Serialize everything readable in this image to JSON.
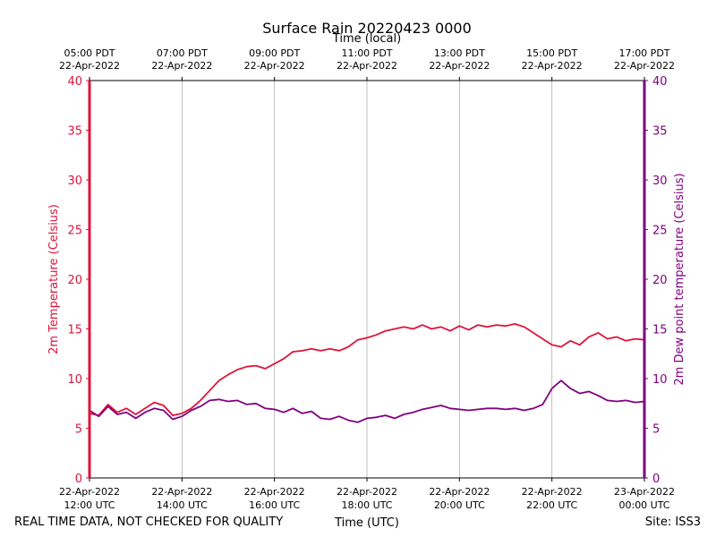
{
  "chart_data": {
    "type": "line",
    "title": "Surface Rain 20220423 0000",
    "top_axis_label": "Time (local)",
    "top_ticks": [
      {
        "line1": "05:00 PDT",
        "line2": "22-Apr-2022"
      },
      {
        "line1": "07:00 PDT",
        "line2": "22-Apr-2022"
      },
      {
        "line1": "09:00 PDT",
        "line2": "22-Apr-2022"
      },
      {
        "line1": "11:00 PDT",
        "line2": "22-Apr-2022"
      },
      {
        "line1": "13:00 PDT",
        "line2": "22-Apr-2022"
      },
      {
        "line1": "15:00 PDT",
        "line2": "22-Apr-2022"
      },
      {
        "line1": "17:00 PDT",
        "line2": "22-Apr-2022"
      }
    ],
    "bottom_ticks": [
      {
        "line1": "22-Apr-2022",
        "line2": "12:00 UTC"
      },
      {
        "line1": "22-Apr-2022",
        "line2": "14:00 UTC"
      },
      {
        "line1": "22-Apr-2022",
        "line2": "16:00 UTC"
      },
      {
        "line1": "22-Apr-2022",
        "line2": "18:00 UTC"
      },
      {
        "line1": "22-Apr-2022",
        "line2": "20:00 UTC"
      },
      {
        "line1": "22-Apr-2022",
        "line2": "22:00 UTC"
      },
      {
        "line1": "23-Apr-2022",
        "line2": "00:00 UTC"
      }
    ],
    "xlabel": "Time (UTC)",
    "xlim_hours_utc": [
      12,
      24
    ],
    "ylabel_left": "2m Temperature (Celsius)",
    "ylabel_right": "2m Dew point temperature (Celsius)",
    "ylim": [
      0,
      40
    ],
    "y_ticks": [
      0,
      5,
      10,
      15,
      20,
      25,
      30,
      35,
      40
    ],
    "grid": "vertical",
    "left_color": "#dc143c",
    "right_color": "#800080",
    "series": [
      {
        "name": "2m Temperature",
        "color": "#dc143c",
        "axis": "left",
        "x": [
          12.0,
          12.2,
          12.4,
          12.6,
          12.8,
          13.0,
          13.2,
          13.4,
          13.6,
          13.8,
          14.0,
          14.2,
          14.4,
          14.6,
          14.8,
          15.0,
          15.2,
          15.4,
          15.6,
          15.8,
          16.0,
          16.2,
          16.4,
          16.6,
          16.8,
          17.0,
          17.2,
          17.4,
          17.6,
          17.8,
          18.0,
          18.2,
          18.4,
          18.6,
          18.8,
          19.0,
          19.2,
          19.4,
          19.6,
          19.8,
          20.0,
          20.2,
          20.4,
          20.6,
          20.8,
          21.0,
          21.2,
          21.4,
          21.6,
          21.8,
          22.0,
          22.2,
          22.4,
          22.6,
          22.8,
          23.0,
          23.2,
          23.4,
          23.6,
          23.8,
          24.0
        ],
        "y": [
          6.5,
          6.3,
          7.4,
          6.6,
          7.0,
          6.4,
          7.0,
          7.6,
          7.3,
          6.3,
          6.5,
          7.0,
          7.8,
          8.8,
          9.8,
          10.4,
          10.9,
          11.2,
          11.3,
          11.0,
          11.5,
          12.0,
          12.7,
          12.8,
          13.0,
          12.8,
          13.0,
          12.8,
          13.2,
          13.9,
          14.1,
          14.4,
          14.8,
          15.0,
          15.2,
          15.0,
          15.4,
          15.0,
          15.2,
          14.8,
          15.3,
          14.9,
          15.4,
          15.2,
          15.4,
          15.3,
          15.5,
          15.2,
          14.6,
          14.0,
          13.4,
          13.2,
          13.8,
          13.4,
          14.2,
          14.6,
          14.0,
          14.2,
          13.8,
          14.0,
          13.9
        ]
      },
      {
        "name": "2m Dew point temperature",
        "color": "#800080",
        "axis": "right",
        "x": [
          12.0,
          12.2,
          12.4,
          12.6,
          12.8,
          13.0,
          13.2,
          13.4,
          13.6,
          13.8,
          14.0,
          14.2,
          14.4,
          14.6,
          14.8,
          15.0,
          15.2,
          15.4,
          15.6,
          15.8,
          16.0,
          16.2,
          16.4,
          16.6,
          16.8,
          17.0,
          17.2,
          17.4,
          17.6,
          17.8,
          18.0,
          18.2,
          18.4,
          18.6,
          18.8,
          19.0,
          19.2,
          19.4,
          19.6,
          19.8,
          20.0,
          20.2,
          20.4,
          20.6,
          20.8,
          21.0,
          21.2,
          21.4,
          21.6,
          21.8,
          22.0,
          22.2,
          22.4,
          22.6,
          22.8,
          23.0,
          23.2,
          23.4,
          23.6,
          23.8,
          24.0
        ],
        "y": [
          6.8,
          6.2,
          7.2,
          6.4,
          6.6,
          6.0,
          6.6,
          7.0,
          6.8,
          5.9,
          6.2,
          6.8,
          7.2,
          7.8,
          7.9,
          7.7,
          7.8,
          7.4,
          7.5,
          7.0,
          6.9,
          6.6,
          7.0,
          6.5,
          6.7,
          6.0,
          5.9,
          6.2,
          5.8,
          5.6,
          6.0,
          6.1,
          6.3,
          6.0,
          6.4,
          6.6,
          6.9,
          7.1,
          7.3,
          7.0,
          6.9,
          6.8,
          6.9,
          7.0,
          7.0,
          6.9,
          7.0,
          6.8,
          7.0,
          7.4,
          9.0,
          9.8,
          9.0,
          8.5,
          8.7,
          8.3,
          7.8,
          7.7,
          7.8,
          7.6,
          7.7
        ]
      }
    ]
  },
  "footer": {
    "left_note": "REAL TIME DATA, NOT CHECKED FOR QUALITY",
    "site": "Site: ISS3"
  }
}
